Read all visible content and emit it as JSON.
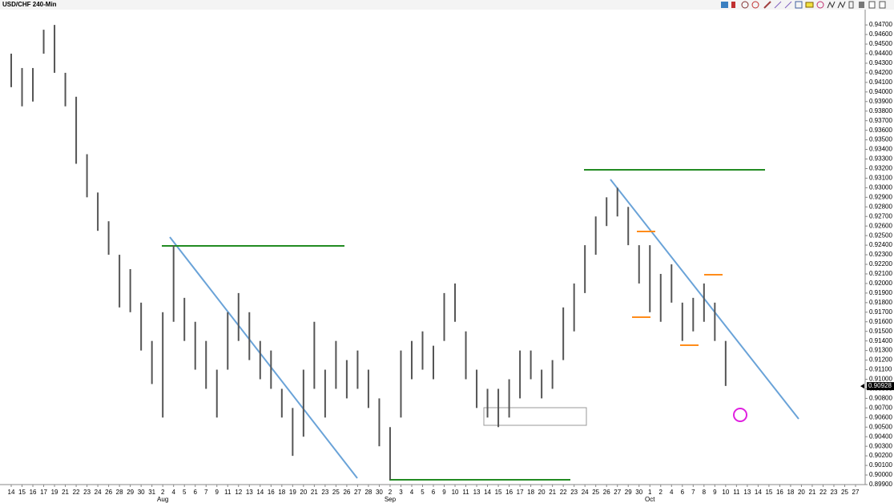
{
  "chart_data": {
    "type": "ohlc",
    "title": "USD/CHF 240-Min",
    "categories": [
      "14",
      "15",
      "16",
      "17",
      "19",
      "21",
      "22",
      "23",
      "24",
      "26",
      "28",
      "29",
      "30",
      "31",
      "2",
      "4",
      "5",
      "6",
      "7",
      "9",
      "11",
      "12",
      "13",
      "14",
      "16",
      "18",
      "19",
      "20",
      "21",
      "23",
      "25",
      "26",
      "27",
      "28",
      "30",
      "2",
      "3",
      "4",
      "5",
      "6",
      "9",
      "10",
      "11",
      "13",
      "14",
      "15",
      "16",
      "17",
      "18",
      "20",
      "21",
      "22",
      "23",
      "24",
      "25",
      "26",
      "27",
      "29",
      "30",
      "1",
      "2",
      "4",
      "6",
      "7",
      "8",
      "9",
      "10",
      "11",
      "13",
      "14",
      "15",
      "16",
      "18",
      "20",
      "21",
      "22",
      "23",
      "25",
      "27"
    ],
    "months": [
      "Aug",
      "Sep",
      "Oct"
    ],
    "highs": [
      0.944,
      0.9425,
      0.9425,
      0.9465,
      0.947,
      0.942,
      0.9395,
      0.9335,
      0.9295,
      0.9265,
      0.923,
      0.9215,
      0.918,
      0.914,
      0.917,
      0.924,
      0.9185,
      0.916,
      0.914,
      0.911,
      0.917,
      0.919,
      0.917,
      0.914,
      0.913,
      0.909,
      0.907,
      0.911,
      0.916,
      0.911,
      0.914,
      0.912,
      0.913,
      0.911,
      0.908,
      0.905,
      0.913,
      0.914,
      0.915,
      0.9135,
      0.919,
      0.92,
      0.915,
      0.911,
      0.909,
      0.909,
      0.91,
      0.913,
      0.913,
      0.911,
      0.912,
      0.9175,
      0.92,
      0.924,
      0.927,
      0.929,
      0.93,
      0.928,
      0.924,
      0.924,
      0.921,
      0.922,
      0.918,
      0.9185,
      0.92,
      0.918,
      0.914,
      null,
      null,
      null,
      null,
      null,
      null,
      null,
      null,
      null,
      null,
      null,
      null
    ],
    "lows": [
      0.9405,
      0.9385,
      0.939,
      0.944,
      0.942,
      0.9385,
      0.9325,
      0.929,
      0.9255,
      0.923,
      0.9175,
      0.917,
      0.913,
      0.9095,
      0.906,
      0.916,
      0.914,
      0.911,
      0.909,
      0.906,
      0.911,
      0.914,
      0.912,
      0.91,
      0.909,
      0.906,
      0.902,
      0.904,
      0.909,
      0.906,
      0.909,
      0.908,
      0.909,
      0.907,
      0.903,
      0.8995,
      0.906,
      0.91,
      0.911,
      0.91,
      0.914,
      0.916,
      0.91,
      0.907,
      0.906,
      0.905,
      0.906,
      0.908,
      0.91,
      0.908,
      0.909,
      0.912,
      0.915,
      0.919,
      0.923,
      0.926,
      0.927,
      0.924,
      0.92,
      0.917,
      0.916,
      0.918,
      0.914,
      0.915,
      0.916,
      0.914,
      0.9093,
      null,
      null,
      null,
      null,
      null,
      null,
      null,
      null,
      null,
      null,
      null,
      null
    ],
    "color": "#555555",
    "last_price": {
      "value": 0.90928,
      "label": "0.90928"
    },
    "ylim": [
      0.899,
      0.9486
    ],
    "yticks": [
      {
        "value": 0.899,
        "label": "0.89900"
      },
      {
        "value": 0.9,
        "label": "0.90000"
      },
      {
        "value": 0.901,
        "label": "0.90100"
      },
      {
        "value": 0.902,
        "label": "0.90200"
      },
      {
        "value": 0.903,
        "label": "0.90300"
      },
      {
        "value": 0.904,
        "label": "0.90400"
      },
      {
        "value": 0.905,
        "label": "0.90500"
      },
      {
        "value": 0.906,
        "label": "0.90600"
      },
      {
        "value": 0.907,
        "label": "0.90700"
      },
      {
        "value": 0.908,
        "label": "0.90800"
      },
      {
        "value": 0.909,
        "label": "0.90900"
      },
      {
        "value": 0.91,
        "label": "0.91000"
      },
      {
        "value": 0.911,
        "label": "0.91100"
      },
      {
        "value": 0.912,
        "label": "0.91200"
      },
      {
        "value": 0.913,
        "label": "0.91300"
      },
      {
        "value": 0.914,
        "label": "0.91400"
      },
      {
        "value": 0.915,
        "label": "0.91500"
      },
      {
        "value": 0.916,
        "label": "0.91600"
      },
      {
        "value": 0.917,
        "label": "0.91700"
      },
      {
        "value": 0.918,
        "label": "0.91800"
      },
      {
        "value": 0.919,
        "label": "0.91900"
      },
      {
        "value": 0.92,
        "label": "0.92000"
      },
      {
        "value": 0.921,
        "label": "0.92100"
      },
      {
        "value": 0.922,
        "label": "0.92200"
      },
      {
        "value": 0.923,
        "label": "0.92300"
      },
      {
        "value": 0.924,
        "label": "0.92400"
      },
      {
        "value": 0.925,
        "label": "0.92500"
      },
      {
        "value": 0.926,
        "label": "0.92600"
      },
      {
        "value": 0.927,
        "label": "0.92700"
      },
      {
        "value": 0.928,
        "label": "0.92800"
      },
      {
        "value": 0.929,
        "label": "0.92900"
      },
      {
        "value": 0.93,
        "label": "0.93000"
      },
      {
        "value": 0.931,
        "label": "0.93100"
      },
      {
        "value": 0.932,
        "label": "0.93200"
      },
      {
        "value": 0.933,
        "label": "0.93300"
      },
      {
        "value": 0.934,
        "label": "0.93400"
      },
      {
        "value": 0.935,
        "label": "0.93500"
      },
      {
        "value": 0.936,
        "label": "0.93600"
      },
      {
        "value": 0.937,
        "label": "0.93700"
      },
      {
        "value": 0.938,
        "label": "0.93800"
      },
      {
        "value": 0.939,
        "label": "0.93900"
      },
      {
        "value": 0.94,
        "label": "0.94000"
      },
      {
        "value": 0.941,
        "label": "0.94100"
      },
      {
        "value": 0.942,
        "label": "0.94200"
      },
      {
        "value": 0.943,
        "label": "0.94300"
      },
      {
        "value": 0.944,
        "label": "0.94400"
      },
      {
        "value": 0.945,
        "label": "0.94500"
      },
      {
        "value": 0.946,
        "label": "0.94600"
      },
      {
        "value": 0.947,
        "label": "0.94700"
      }
    ]
  }
}
